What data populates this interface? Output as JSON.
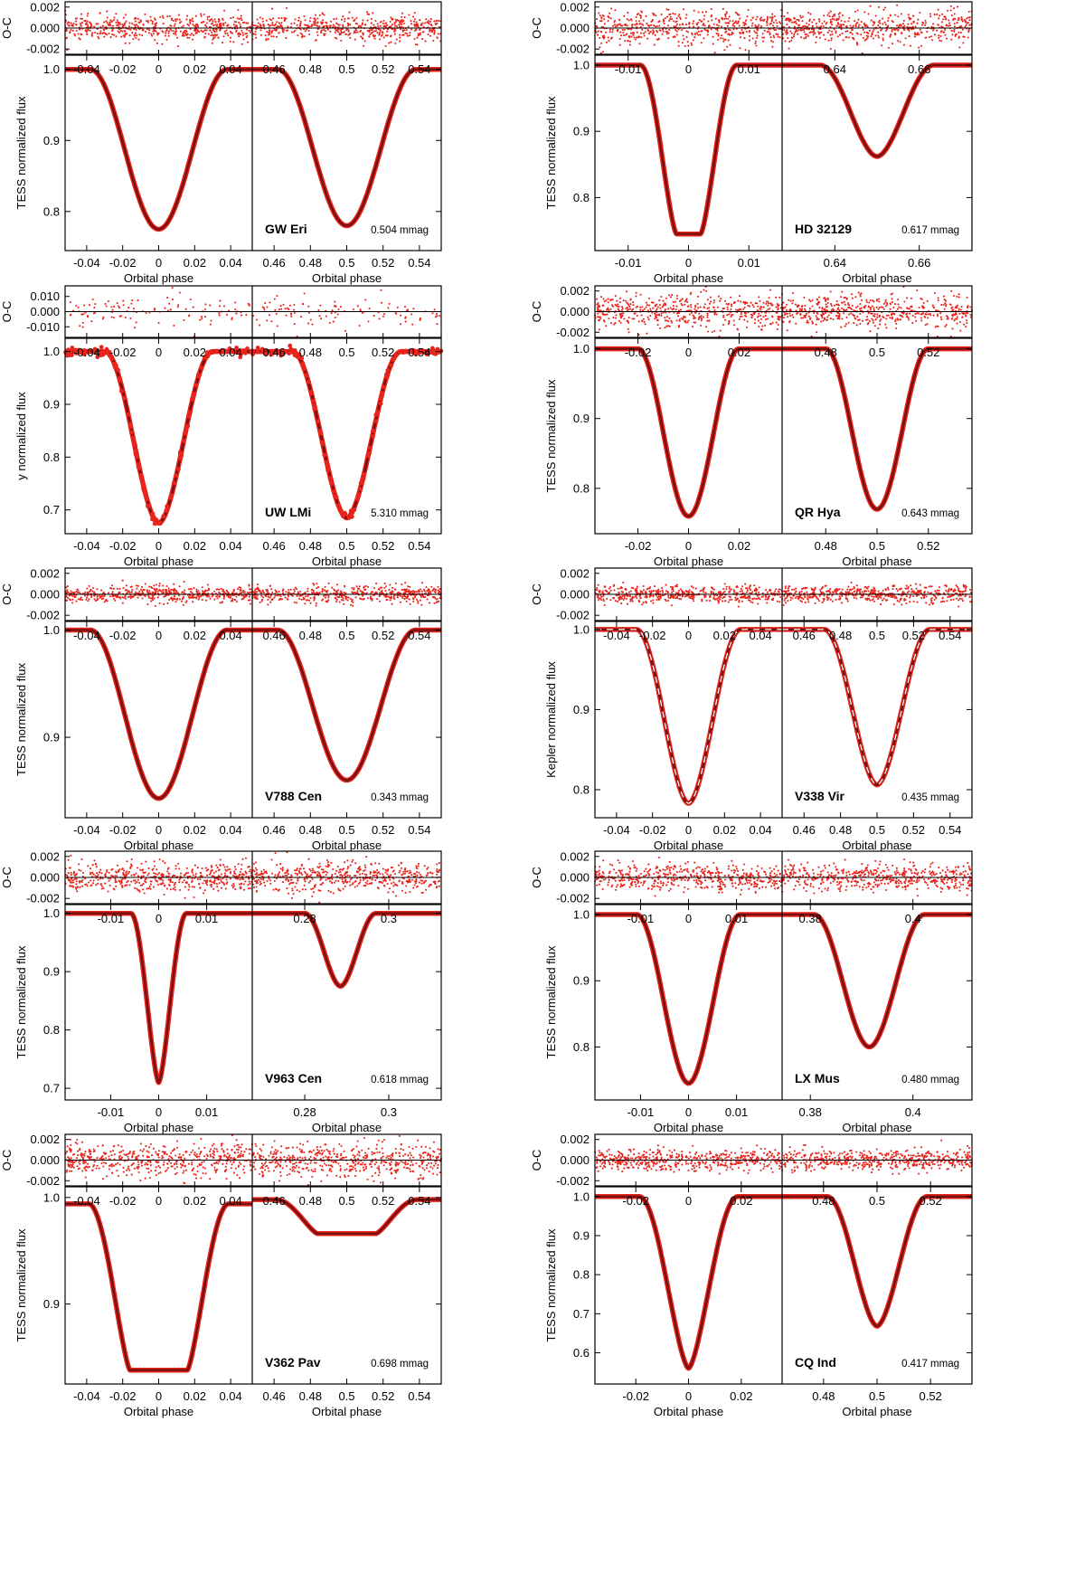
{
  "figure": {
    "model_color": "#7a1010",
    "data_color": "#e8251c",
    "dash_color": "#ffffff"
  },
  "chart_data": [
    {
      "type": "line",
      "star": "GW Eri",
      "rms": "0.504 mmag",
      "ylabel": "TESS normalized flux",
      "xlabel": "Orbital phase",
      "resid_label": "O-C",
      "ylim": [
        0.745,
        1.02
      ],
      "yticks": [
        1.0,
        0.9,
        0.8
      ],
      "ytick_labels": [
        "1.0",
        "0.9",
        "0.8"
      ],
      "resid_ylim": [
        -0.0025,
        0.0025
      ],
      "resid_yticks": [
        0.002,
        0.0,
        -0.002
      ],
      "resid_ytick_labels": [
        "0.002",
        "0.000",
        "-0.002"
      ],
      "resid_scatter": 0.0006,
      "primary": {
        "xlim": [
          -0.052,
          0.052
        ],
        "xticks": [
          -0.04,
          -0.02,
          0,
          0.02,
          0.04
        ],
        "xtick_labels": [
          "-0.04",
          "-0.02",
          "0",
          "0.02",
          "0.04"
        ],
        "center": 0.0,
        "half_width": 0.038,
        "min_flux": 0.775,
        "flat": 0.0,
        "ingress_shape": 2.2
      },
      "secondary": {
        "xlim": [
          0.448,
          0.552
        ],
        "xticks": [
          0.46,
          0.48,
          0.5,
          0.52,
          0.54
        ],
        "xtick_labels": [
          "0.46",
          "0.48",
          "0.5",
          "0.52",
          "0.54"
        ],
        "center": 0.5,
        "half_width": 0.038,
        "min_flux": 0.78,
        "flat": 0.0,
        "ingress_shape": 2.2
      }
    },
    {
      "type": "line",
      "star": "HD 32129",
      "rms": "0.617 mmag",
      "ylabel": "TESS normalized flux",
      "xlabel": "Orbital phase",
      "resid_label": "O-C",
      "ylim": [
        0.72,
        1.015
      ],
      "yticks": [
        1.0,
        0.9,
        0.8
      ],
      "ytick_labels": [
        "1.0",
        "0.9",
        "0.8"
      ],
      "resid_ylim": [
        -0.0025,
        0.0025
      ],
      "resid_yticks": [
        0.002,
        0.0,
        -0.002
      ],
      "resid_ytick_labels": [
        "0.002",
        "0.000",
        "-0.002"
      ],
      "resid_scatter": 0.0008,
      "primary": {
        "xlim": [
          -0.0155,
          0.0155
        ],
        "xticks": [
          -0.01,
          0,
          0.01
        ],
        "xtick_labels": [
          "-0.01",
          "0",
          "0.01"
        ],
        "center": 0.0,
        "half_width": 0.008,
        "min_flux": 0.745,
        "flat": 0.002,
        "ingress_shape": 1.6
      },
      "secondary": {
        "xlim": [
          0.6275,
          0.6725
        ],
        "xticks": [
          0.64,
          0.66
        ],
        "xtick_labels": [
          "0.64",
          "0.66"
        ],
        "center": 0.65,
        "half_width": 0.0135,
        "min_flux": 0.862,
        "flat": 0.0,
        "ingress_shape": 2.0
      }
    },
    {
      "type": "line",
      "star": "UW LMi",
      "rms": "5.310 mmag",
      "ylabel": "y normalized flux",
      "xlabel": "Orbital phase",
      "resid_label": "O-C",
      "ylim": [
        0.655,
        1.025
      ],
      "yticks": [
        1.0,
        0.9,
        0.8,
        0.7
      ],
      "ytick_labels": [
        "1.0",
        "0.9",
        "0.8",
        "0.7"
      ],
      "resid_ylim": [
        -0.017,
        0.017
      ],
      "resid_yticks": [
        0.01,
        0.0,
        -0.01
      ],
      "resid_ytick_labels": [
        "0.010",
        "0.000",
        "-0.010"
      ],
      "resid_scatter": 0.005,
      "primary": {
        "xlim": [
          -0.052,
          0.052
        ],
        "xticks": [
          -0.04,
          -0.02,
          0,
          0.02,
          0.04
        ],
        "xtick_labels": [
          "-0.04",
          "-0.02",
          "0",
          "0.02",
          "0.04"
        ],
        "center": 0.0,
        "half_width": 0.03,
        "min_flux": 0.675,
        "flat": 0.0,
        "ingress_shape": 2.0
      },
      "secondary": {
        "xlim": [
          0.448,
          0.552
        ],
        "xticks": [
          0.46,
          0.48,
          0.5,
          0.52,
          0.54
        ],
        "xtick_labels": [
          "0.46",
          "0.48",
          "0.5",
          "0.52",
          "0.54"
        ],
        "center": 0.5,
        "half_width": 0.03,
        "min_flux": 0.685,
        "flat": 0.0,
        "ingress_shape": 2.0
      }
    },
    {
      "type": "line",
      "star": "QR Hya",
      "rms": "0.643 mmag",
      "ylabel": "TESS normalized flux",
      "xlabel": "Orbital phase",
      "resid_label": "O-C",
      "ylim": [
        0.735,
        1.015
      ],
      "yticks": [
        1.0,
        0.9,
        0.8
      ],
      "ytick_labels": [
        "1.0",
        "0.9",
        "0.8"
      ],
      "resid_ylim": [
        -0.0025,
        0.0025
      ],
      "resid_yticks": [
        0.002,
        0.0,
        -0.002
      ],
      "resid_ytick_labels": [
        "0.002",
        "0.000",
        "-0.002"
      ],
      "resid_scatter": 0.0008,
      "primary": {
        "xlim": [
          -0.037,
          0.037
        ],
        "xticks": [
          -0.02,
          0,
          0.02
        ],
        "xtick_labels": [
          "-0.02",
          "0",
          "0.02"
        ],
        "center": 0.0,
        "half_width": 0.02,
        "min_flux": 0.76,
        "flat": 0.0,
        "ingress_shape": 2.2
      },
      "secondary": {
        "xlim": [
          0.463,
          0.537
        ],
        "xticks": [
          0.48,
          0.5,
          0.52
        ],
        "xtick_labels": [
          "0.48",
          "0.5",
          "0.52"
        ],
        "center": 0.5,
        "half_width": 0.02,
        "min_flux": 0.77,
        "flat": 0.0,
        "ingress_shape": 2.2
      }
    },
    {
      "type": "line",
      "star": "V788 Cen",
      "rms": "0.343 mmag",
      "ylabel": "TESS normalized flux",
      "xlabel": "Orbital phase",
      "resid_label": "O-C",
      "ylim": [
        0.825,
        1.008
      ],
      "yticks": [
        1.0,
        0.9
      ],
      "ytick_labels": [
        "1.0",
        "0.9"
      ],
      "resid_ylim": [
        -0.0025,
        0.0025
      ],
      "resid_yticks": [
        0.002,
        0.0,
        -0.002
      ],
      "resid_ytick_labels": [
        "0.002",
        "0.000",
        "-0.002"
      ],
      "resid_scatter": 0.0004,
      "primary": {
        "xlim": [
          -0.052,
          0.052
        ],
        "xticks": [
          -0.04,
          -0.02,
          0,
          0.02,
          0.04
        ],
        "xtick_labels": [
          "-0.04",
          "-0.02",
          "0",
          "0.02",
          "0.04"
        ],
        "center": 0.0,
        "half_width": 0.038,
        "min_flux": 0.843,
        "flat": 0.0,
        "ingress_shape": 2.2
      },
      "secondary": {
        "xlim": [
          0.448,
          0.552
        ],
        "xticks": [
          0.46,
          0.48,
          0.5,
          0.52,
          0.54
        ],
        "xtick_labels": [
          "0.46",
          "0.48",
          "0.5",
          "0.52",
          "0.54"
        ],
        "center": 0.5,
        "half_width": 0.038,
        "min_flux": 0.86,
        "flat": 0.0,
        "ingress_shape": 2.2
      }
    },
    {
      "type": "line",
      "star": "V338 Vir",
      "rms": "0.435 mmag",
      "ylabel": "Kepler normalized flux",
      "xlabel": "Orbital phase",
      "resid_label": "O-C",
      "ylim": [
        0.765,
        1.01
      ],
      "yticks": [
        1.0,
        0.9,
        0.8
      ],
      "ytick_labels": [
        "1.0",
        "0.9",
        "0.8"
      ],
      "resid_ylim": [
        -0.0025,
        0.0025
      ],
      "resid_yticks": [
        0.002,
        0.0,
        -0.002
      ],
      "resid_ytick_labels": [
        "0.002",
        "0.000",
        "-0.002"
      ],
      "resid_scatter": 0.0004,
      "dashed_model": true,
      "primary": {
        "xlim": [
          -0.052,
          0.052
        ],
        "xticks": [
          -0.04,
          -0.02,
          0,
          0.02,
          0.04
        ],
        "xtick_labels": [
          "-0.04",
          "-0.02",
          "0",
          "0.02",
          "0.04"
        ],
        "center": 0.0,
        "half_width": 0.029,
        "min_flux": 0.783,
        "flat": 0.0,
        "ingress_shape": 2.0
      },
      "secondary": {
        "xlim": [
          0.448,
          0.552
        ],
        "xticks": [
          0.46,
          0.48,
          0.5,
          0.52,
          0.54
        ],
        "xtick_labels": [
          "0.46",
          "0.48",
          "0.5",
          "0.52",
          "0.54"
        ],
        "center": 0.5,
        "half_width": 0.029,
        "min_flux": 0.806,
        "flat": 0.0,
        "ingress_shape": 2.0
      }
    },
    {
      "type": "line",
      "star": "V963 Cen",
      "rms": "0.618 mmag",
      "ylabel": "TESS normalized flux",
      "xlabel": "Orbital phase",
      "resid_label": "O-C",
      "ylim": [
        0.68,
        1.015
      ],
      "yticks": [
        1.0,
        0.9,
        0.8,
        0.7
      ],
      "ytick_labels": [
        "1.0",
        "0.9",
        "0.8",
        "0.7"
      ],
      "resid_ylim": [
        -0.0025,
        0.0025
      ],
      "resid_yticks": [
        0.002,
        0.0,
        -0.002
      ],
      "resid_ytick_labels": [
        "0.002",
        "0.000",
        "-0.002"
      ],
      "resid_scatter": 0.0007,
      "primary": {
        "xlim": [
          -0.0195,
          0.0195
        ],
        "xticks": [
          -0.01,
          0,
          0.01
        ],
        "xtick_labels": [
          "-0.01",
          "0",
          "0.01"
        ],
        "center": 0.0,
        "half_width": 0.0058,
        "min_flux": 0.71,
        "flat": 0.0,
        "ingress_shape": 1.7
      },
      "secondary": {
        "xlim": [
          0.2675,
          0.3125
        ],
        "xticks": [
          0.28,
          0.3
        ],
        "xtick_labels": [
          "0.28",
          "0.3"
        ],
        "center": 0.2885,
        "half_width": 0.0085,
        "min_flux": 0.875,
        "flat": 0.0,
        "ingress_shape": 2.0
      }
    },
    {
      "type": "line",
      "star": "LX Mus",
      "rms": "0.480 mmag",
      "ylabel": "TESS normalized flux",
      "xlabel": "Orbital phase",
      "resid_label": "O-C",
      "ylim": [
        0.72,
        1.015
      ],
      "yticks": [
        1.0,
        0.9,
        0.8
      ],
      "ytick_labels": [
        "1.0",
        "0.9",
        "0.8"
      ],
      "resid_ylim": [
        -0.0025,
        0.0025
      ],
      "resid_yticks": [
        0.002,
        0.0,
        -0.002
      ],
      "resid_ytick_labels": [
        "0.002",
        "0.000",
        "-0.002"
      ],
      "resid_scatter": 0.0006,
      "primary": {
        "xlim": [
          -0.0195,
          0.0195
        ],
        "xticks": [
          -0.01,
          0,
          0.01
        ],
        "xtick_labels": [
          "-0.01",
          "0",
          "0.01"
        ],
        "center": 0.0,
        "half_width": 0.0108,
        "min_flux": 0.745,
        "flat": 0.0,
        "ingress_shape": 2.1
      },
      "secondary": {
        "xlim": [
          0.3745,
          0.4115
        ],
        "xticks": [
          0.38,
          0.4
        ],
        "xtick_labels": [
          "0.38",
          "0.4"
        ],
        "center": 0.3915,
        "half_width": 0.0108,
        "min_flux": 0.8,
        "flat": 0.0,
        "ingress_shape": 2.1
      }
    },
    {
      "type": "line",
      "star": "V362 Pav",
      "rms": "0.698 mmag",
      "ylabel": "TESS normalized flux",
      "xlabel": "Orbital phase",
      "resid_label": "O-C",
      "ylim": [
        0.825,
        1.01
      ],
      "yticks": [
        1.0,
        0.9
      ],
      "ytick_labels": [
        "1.0",
        "0.9"
      ],
      "resid_ylim": [
        -0.0025,
        0.0025
      ],
      "resid_yticks": [
        0.002,
        0.0,
        -0.002
      ],
      "resid_ytick_labels": [
        "0.002",
        "0.000",
        "-0.002"
      ],
      "resid_scatter": 0.0008,
      "primary": {
        "xlim": [
          -0.052,
          0.052
        ],
        "xticks": [
          -0.04,
          -0.02,
          0,
          0.02,
          0.04
        ],
        "xtick_labels": [
          "-0.04",
          "-0.02",
          "0",
          "0.02",
          "0.04"
        ],
        "center": 0.0,
        "half_width": 0.039,
        "min_flux": 0.838,
        "flat": 0.016,
        "ingress_shape": 1.5,
        "baseline": 0.994
      },
      "secondary": {
        "xlim": [
          0.448,
          0.552
        ],
        "xticks": [
          0.46,
          0.48,
          0.5,
          0.52,
          0.54
        ],
        "xtick_labels": [
          "0.46",
          "0.48",
          "0.5",
          "0.52",
          "0.54"
        ],
        "center": 0.5,
        "half_width": 0.039,
        "min_flux": 0.966,
        "flat": 0.016,
        "ingress_shape": 1.5,
        "baseline": 0.998
      }
    },
    {
      "type": "line",
      "star": "CQ Ind",
      "rms": "0.417 mmag",
      "ylabel": "TESS normalized flux",
      "xlabel": "Orbital phase",
      "resid_label": "O-C",
      "ylim": [
        0.52,
        1.025
      ],
      "yticks": [
        1.0,
        0.9,
        0.8,
        0.7,
        0.6
      ],
      "ytick_labels": [
        "1.0",
        "0.9",
        "0.8",
        "0.7",
        "0.6"
      ],
      "resid_ylim": [
        -0.0025,
        0.0025
      ],
      "resid_yticks": [
        0.002,
        0.0,
        -0.002
      ],
      "resid_ytick_labels": [
        "0.002",
        "0.000",
        "-0.002"
      ],
      "resid_scatter": 0.0005,
      "primary": {
        "xlim": [
          -0.0355,
          0.0355
        ],
        "xticks": [
          -0.02,
          0,
          0.02
        ],
        "xtick_labels": [
          "-0.02",
          "0",
          "0.02"
        ],
        "center": 0.0,
        "half_width": 0.0187,
        "min_flux": 0.56,
        "flat": 0.0,
        "ingress_shape": 1.7
      },
      "secondary": {
        "xlim": [
          0.4645,
          0.5355
        ],
        "xticks": [
          0.48,
          0.5,
          0.52
        ],
        "xtick_labels": [
          "0.48",
          "0.5",
          "0.52"
        ],
        "center": 0.5,
        "half_width": 0.0187,
        "min_flux": 0.668,
        "flat": 0.0,
        "ingress_shape": 1.9
      }
    }
  ]
}
